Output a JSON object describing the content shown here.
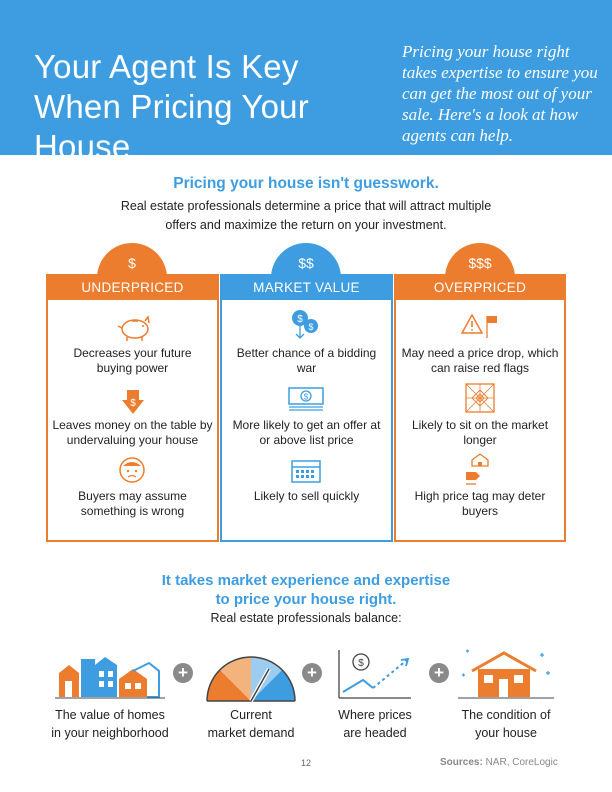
{
  "header": {
    "title": "Your Agent Is Key When Pricing Your House",
    "subtitle": "Pricing your house right takes expertise to ensure you can get the most out of your sale. Here's a look at how agents can help."
  },
  "intro": {
    "heading": "Pricing your house isn't guesswork.",
    "text": "Real estate professionals determine a price that will attract multiple offers and maximize the return on your investment."
  },
  "columns": [
    {
      "symbol": "$",
      "label": "UNDERPRICED",
      "color": "#ec7d2e",
      "items": [
        {
          "icon": "piggy-bank-icon",
          "text": "Decreases your future buying power"
        },
        {
          "icon": "down-arrow-dollar-icon",
          "text": "Leaves money on the table by undervaluing your house"
        },
        {
          "icon": "worried-person-icon",
          "text": "Buyers may assume something is wrong"
        }
      ]
    },
    {
      "symbol": "$$",
      "label": "MARKET VALUE",
      "color": "#3d9de0",
      "items": [
        {
          "icon": "dollar-coins-icon",
          "text": "Better chance of a bidding war"
        },
        {
          "icon": "money-stack-icon",
          "text": "More likely to get an offer at or above list price"
        },
        {
          "icon": "calendar-icon",
          "text": "Likely to sell quickly"
        }
      ]
    },
    {
      "symbol": "$$$",
      "label": "OVERPRICED",
      "color": "#ec7d2e",
      "items": [
        {
          "icon": "warning-flag-icon",
          "text": "May need a price drop, which can raise red flags"
        },
        {
          "icon": "cobweb-icon",
          "text": "Likely to sit on the market longer"
        },
        {
          "icon": "house-price-tag-icon",
          "text": "High price tag may deter buyers"
        }
      ]
    }
  ],
  "bottom": {
    "heading_line1": "It takes market experience and expertise",
    "heading_line2": "to price your house right.",
    "sub": "Real estate professionals balance:",
    "factors": [
      {
        "icon": "neighborhood-homes-icon",
        "line1": "The value of homes",
        "line2": "in your neighborhood"
      },
      {
        "icon": "demand-gauge-icon",
        "line1": "Current",
        "line2": "market demand"
      },
      {
        "icon": "price-trend-icon",
        "line1": "Where prices",
        "line2": "are headed"
      },
      {
        "icon": "house-condition-icon",
        "line1": "The condition of",
        "line2": "your house"
      }
    ],
    "plus": "+"
  },
  "footer": {
    "page_number": "12",
    "sources_label": "Sources:",
    "sources_text": " NAR, CoreLogic"
  },
  "colors": {
    "orange": "#ec7d2e",
    "blue": "#3d9de0"
  }
}
